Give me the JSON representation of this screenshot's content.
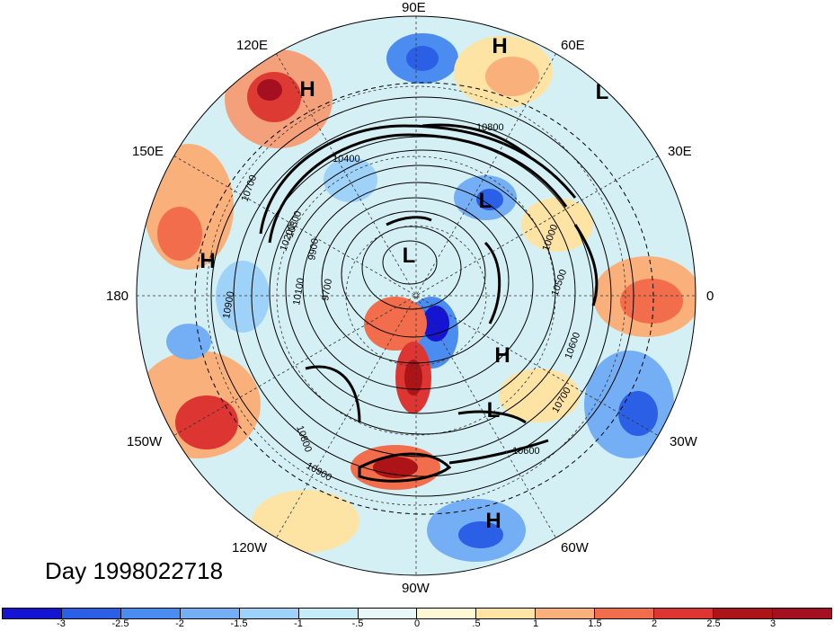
{
  "map": {
    "day_label": "Day 1998022718",
    "longitude_labels": [
      {
        "text": "90E",
        "name": "lon-label-90e"
      },
      {
        "text": "60E",
        "name": "lon-label-60e"
      },
      {
        "text": "120E",
        "name": "lon-label-120e"
      },
      {
        "text": "30E",
        "name": "lon-label-30e"
      },
      {
        "text": "150E",
        "name": "lon-label-150e"
      },
      {
        "text": "180",
        "name": "lon-label-180"
      },
      {
        "text": "0",
        "name": "lon-label-0"
      },
      {
        "text": "150W",
        "name": "lon-label-150w"
      },
      {
        "text": "30W",
        "name": "lon-label-30w"
      },
      {
        "text": "120W",
        "name": "lon-label-120w"
      },
      {
        "text": "60W",
        "name": "lon-label-60w"
      },
      {
        "text": "90W",
        "name": "lon-label-90w"
      }
    ],
    "pressure_centers": [
      {
        "label": "H",
        "name": "high-center-1"
      },
      {
        "label": "H",
        "name": "high-center-2"
      },
      {
        "label": "L",
        "name": "low-center-1"
      },
      {
        "label": "L",
        "name": "low-center-2"
      },
      {
        "label": "H",
        "name": "high-center-3"
      },
      {
        "label": "L",
        "name": "low-center-3"
      },
      {
        "label": "H",
        "name": "high-center-4"
      },
      {
        "label": "L",
        "name": "low-center-4"
      },
      {
        "label": "H",
        "name": "high-center-5"
      }
    ],
    "contour_labels": [
      "10800",
      "10400",
      "10700",
      "10300",
      "10200",
      "10100",
      "9900",
      "9700",
      "10900",
      "10600",
      "10500",
      "10000",
      "10800",
      "10900",
      "10700",
      "10600"
    ],
    "background_color": "#cfeef3"
  },
  "colorbar": {
    "tick_labels": [
      "-3",
      "-2.5",
      "-2",
      "-1.5",
      "-1",
      "-.5",
      "0",
      ".5",
      "1",
      "1.5",
      "2",
      "2.5",
      "3"
    ],
    "colors": [
      "#1414d2",
      "#2b5fe6",
      "#4b8cf0",
      "#74aff5",
      "#9ed2f8",
      "#c6ecf8",
      "#e8f8f8",
      "#fdf7d6",
      "#fde3a4",
      "#f9b07a",
      "#f26d4c",
      "#dc3532",
      "#ad1418",
      "#a40f22"
    ]
  }
}
